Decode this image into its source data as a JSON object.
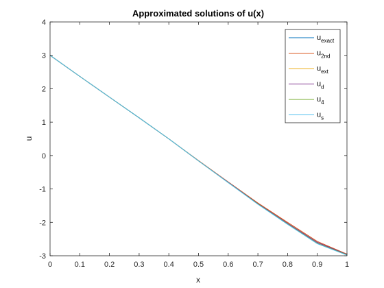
{
  "chart_data": {
    "type": "line",
    "title": "Approximated solutions of u(x)",
    "xlabel": "x",
    "ylabel": "u",
    "xlim": [
      0,
      1
    ],
    "ylim": [
      -3,
      4
    ],
    "xticks": [
      0,
      0.1,
      0.2,
      0.3,
      0.4,
      0.5,
      0.6,
      0.7,
      0.8,
      0.9,
      1
    ],
    "xtick_labels": [
      "0",
      "0.1",
      "0.2",
      "0.3",
      "0.4",
      "0.5",
      "0.6",
      "0.7",
      "0.8",
      "0.9",
      "1"
    ],
    "yticks": [
      -3,
      -2,
      -1,
      0,
      1,
      2,
      3,
      4
    ],
    "ytick_labels": [
      "-3",
      "-2",
      "-1",
      "0",
      "1",
      "2",
      "3",
      "4"
    ],
    "grid": false,
    "legend_position": "top-right",
    "x": [
      0,
      0.1,
      0.2,
      0.3,
      0.4,
      0.5,
      0.6,
      0.7,
      0.8,
      0.9,
      1
    ],
    "series": [
      {
        "name_main": "u",
        "name_sub": "exact",
        "color": "#0072BD",
        "values": [
          3.0,
          2.37,
          1.75,
          1.13,
          0.5,
          -0.16,
          -0.8,
          -1.44,
          -2.03,
          -2.6,
          -2.96
        ]
      },
      {
        "name_main": "u",
        "name_sub": "2nd",
        "color": "#D95319",
        "values": [
          3.0,
          2.37,
          1.75,
          1.13,
          0.5,
          -0.15,
          -0.79,
          -1.42,
          -2.0,
          -2.57,
          -2.95
        ]
      },
      {
        "name_main": "u",
        "name_sub": "ext",
        "color": "#EDB120",
        "values": [
          3.0,
          2.37,
          1.75,
          1.13,
          0.5,
          -0.16,
          -0.8,
          -1.44,
          -2.03,
          -2.6,
          -2.96
        ]
      },
      {
        "name_main": "u",
        "name_sub": "d",
        "color": "#7E2F8E",
        "values": [
          3.0,
          2.37,
          1.75,
          1.13,
          0.5,
          -0.16,
          -0.8,
          -1.44,
          -2.03,
          -2.6,
          -2.96
        ]
      },
      {
        "name_main": "u",
        "name_sub": "4",
        "color": "#77AC30",
        "values": [
          3.0,
          2.37,
          1.75,
          1.13,
          0.5,
          -0.16,
          -0.81,
          -1.45,
          -2.05,
          -2.63,
          -2.97
        ]
      },
      {
        "name_main": "u",
        "name_sub": "s",
        "color": "#4DBEEE",
        "values": [
          3.0,
          2.37,
          1.75,
          1.13,
          0.5,
          -0.16,
          -0.81,
          -1.46,
          -2.06,
          -2.64,
          -2.98
        ]
      }
    ]
  }
}
